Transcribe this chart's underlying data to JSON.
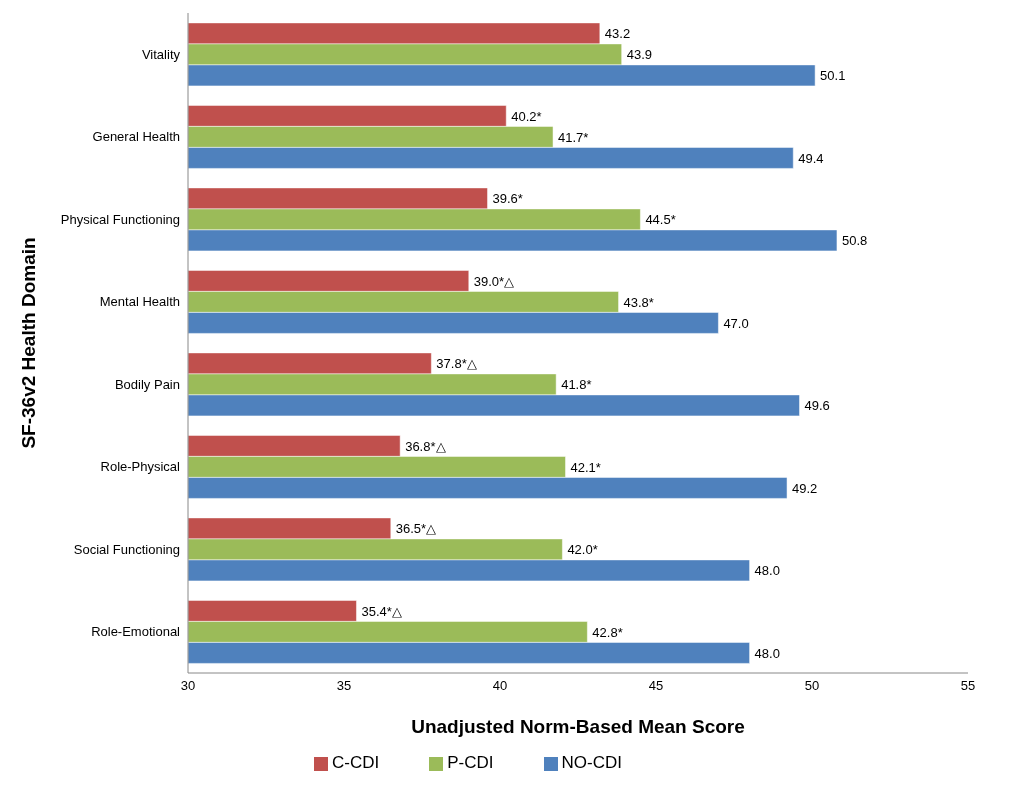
{
  "chart_data": {
    "type": "bar",
    "orientation": "horizontal",
    "xlabel": "Unadjusted Norm-Based Mean Score",
    "ylabel": "SF-36v2 Health Domain",
    "categories": [
      "Vitality",
      "General Health",
      "Physical Functioning",
      "Mental Health",
      "Bodily Pain",
      "Role-Physical",
      "Social Functioning",
      "Role-Emotional"
    ],
    "series": [
      {
        "name": "C-CDI",
        "color": "#c0504d",
        "values": [
          43.2,
          40.2,
          39.6,
          39.0,
          37.8,
          36.8,
          36.5,
          35.4
        ],
        "value_labels": [
          "43.2",
          "40.2*",
          "39.6*",
          "39.0*△",
          "37.8*△",
          "36.8*△",
          "36.5*△",
          "35.4*△"
        ]
      },
      {
        "name": "P-CDI",
        "color": "#9bbb59",
        "values": [
          43.9,
          41.7,
          44.5,
          43.8,
          41.8,
          42.1,
          42.0,
          42.8
        ],
        "value_labels": [
          "43.9",
          "41.7*",
          "44.5*",
          "43.8*",
          "41.8*",
          "42.1*",
          "42.0*",
          "42.8*"
        ]
      },
      {
        "name": "NO-CDI",
        "color": "#4f81bd",
        "values": [
          50.1,
          49.4,
          50.8,
          47.0,
          49.6,
          49.2,
          48.0,
          48.0
        ],
        "value_labels": [
          "50.1",
          "49.4",
          "50.8",
          "47.0",
          "49.6",
          "49.2",
          "48.0",
          "48.0"
        ]
      }
    ],
    "xlim": [
      30,
      55
    ],
    "xticks": [
      30,
      35,
      40,
      45,
      50,
      55
    ],
    "grid": false,
    "legend": "bottom"
  }
}
